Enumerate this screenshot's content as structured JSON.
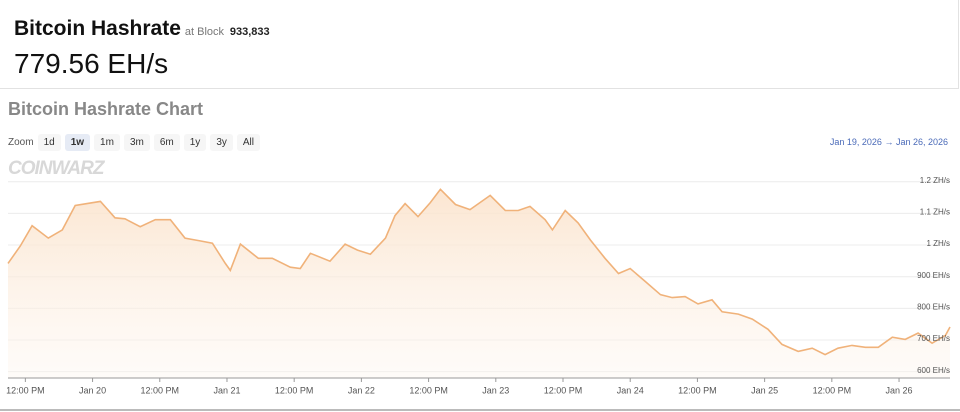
{
  "header": {
    "title": "Bitcoin Hashrate",
    "block_label": "at Block",
    "block": "933,833",
    "value": "779.56 EH/s"
  },
  "controls": {
    "zoom_label": "Zoom",
    "zoom_options": [
      "1d",
      "1w",
      "1m",
      "3m",
      "6m",
      "1y",
      "3y",
      "All"
    ],
    "active": "1w"
  },
  "date_range": {
    "from": "Jan 19, 2026",
    "arrow": "→",
    "to": "Jan 26, 2026"
  },
  "watermark": "COINWARZ",
  "chart_data": {
    "type": "area",
    "title": "Bitcoin Hashrate Chart",
    "x": [
      8.9,
      11.1,
      13.2,
      16.1,
      18.6,
      20.9,
      23.0,
      25.4,
      28.0,
      29.8,
      32.5,
      35.2,
      37.9,
      40.5,
      43.2,
      45.4,
      47.7,
      48.6,
      50.4,
      53.6,
      56.1,
      59.3,
      61.1,
      62.9,
      66.4,
      69.1,
      71.3,
      73.6,
      76.3,
      78.0,
      79.8,
      82.1,
      84.3,
      86.1,
      88.8,
      91.4,
      95.0,
      97.7,
      100.0,
      102.1,
      104.8,
      106.1,
      108.4,
      110.7,
      112.9,
      115.5,
      117.9,
      120.0,
      122.7,
      125.4,
      127.5,
      129.8,
      132.1,
      134.6,
      136.4,
      139.3,
      141.8,
      144.6,
      147.1,
      150.0,
      152.5,
      154.8,
      157.1,
      159.6,
      162.0,
      164.3,
      166.8,
      169.1,
      171.4,
      173.9,
      176.3,
      177.1
    ],
    "series": [
      {
        "name": "Hashrate",
        "color": "#f0b27a",
        "values": [
          942,
          997,
          1061,
          1022,
          1048,
          1125,
          1131,
          1138,
          1086,
          1083,
          1058,
          1080,
          1080,
          1022,
          1013,
          1006,
          942,
          920,
          1003,
          958,
          958,
          930,
          926,
          974,
          949,
          1003,
          984,
          971,
          1022,
          1093,
          1131,
          1090,
          1134,
          1176,
          1128,
          1112,
          1157,
          1109,
          1109,
          1122,
          1080,
          1048,
          1109,
          1070,
          1016,
          958,
          910,
          926,
          885,
          843,
          834,
          837,
          814,
          827,
          789,
          782,
          766,
          734,
          686,
          664,
          674,
          654,
          674,
          683,
          677,
          677,
          709,
          702,
          722,
          690,
          715,
          741
        ]
      }
    ],
    "xlim": [
      8.9,
      177.1
    ],
    "xticks": [
      {
        "value": 12,
        "label": "12:00 PM"
      },
      {
        "value": 24,
        "label": "Jan 20"
      },
      {
        "value": 36,
        "label": "12:00 PM"
      },
      {
        "value": 48,
        "label": "Jan 21"
      },
      {
        "value": 60,
        "label": "12:00 PM"
      },
      {
        "value": 72,
        "label": "Jan 22"
      },
      {
        "value": 84,
        "label": "12:00 PM"
      },
      {
        "value": 96,
        "label": "Jan 23"
      },
      {
        "value": 108,
        "label": "12:00 PM"
      },
      {
        "value": 120,
        "label": "Jan 24"
      },
      {
        "value": 132,
        "label": "12:00 PM"
      },
      {
        "value": 144,
        "label": "Jan 25"
      },
      {
        "value": 156,
        "label": "12:00 PM"
      },
      {
        "value": 168,
        "label": "Jan 26"
      }
    ],
    "ylim": [
      580,
      1275
    ],
    "yticks": [
      {
        "value": 600,
        "label": "600 EH/s"
      },
      {
        "value": 700,
        "label": "700 EH/s"
      },
      {
        "value": 800,
        "label": "800 EH/s"
      },
      {
        "value": 900,
        "label": "900 EH/s"
      },
      {
        "value": 1000,
        "label": "1 ZH/s"
      },
      {
        "value": 1100,
        "label": "1.1 ZH/s"
      },
      {
        "value": 1200,
        "label": "1.2 ZH/s"
      }
    ],
    "grid": true
  }
}
